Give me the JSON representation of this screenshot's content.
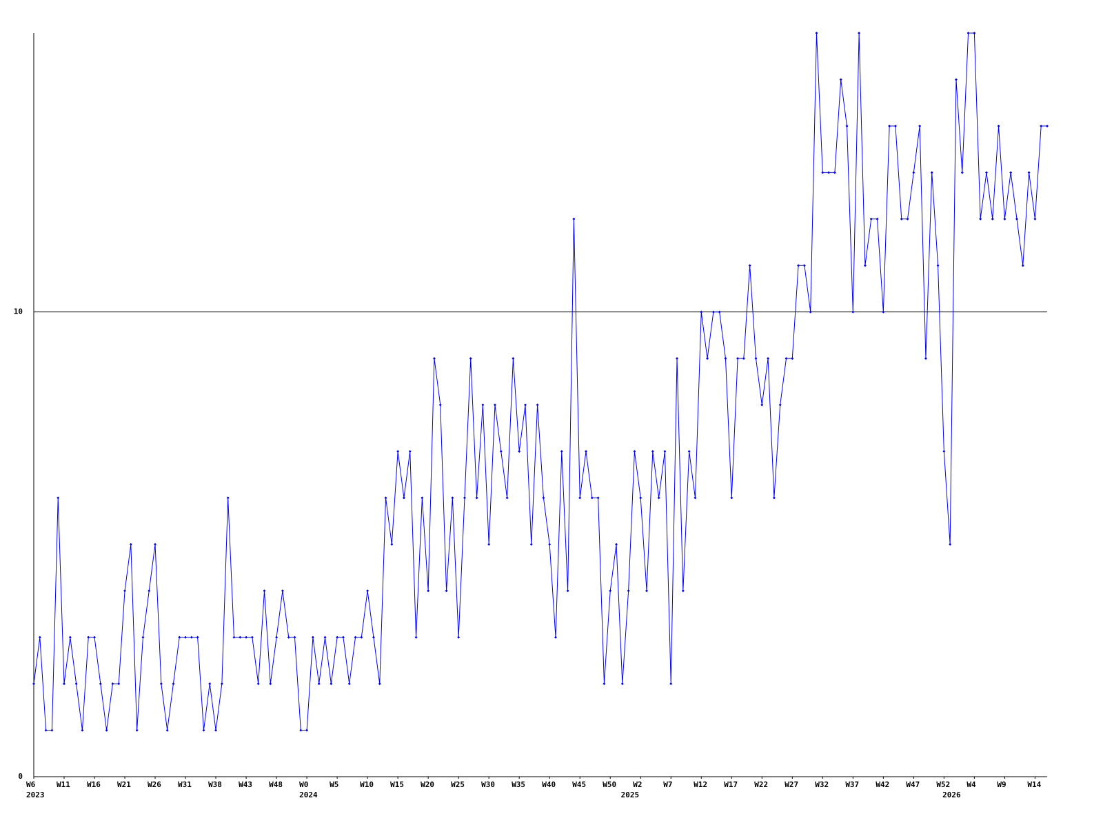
{
  "chart_data": {
    "type": "line",
    "x": [
      0,
      1,
      2,
      3,
      4,
      5,
      6,
      7,
      8,
      9,
      10,
      11,
      12,
      13,
      14,
      15,
      16,
      17,
      18,
      19,
      20,
      21,
      22,
      23,
      24,
      25,
      26,
      27,
      28,
      29,
      30,
      31,
      32,
      33,
      34,
      35,
      36,
      37,
      38,
      39,
      40,
      41,
      42,
      43,
      44,
      45,
      46,
      47,
      48,
      49,
      50,
      51,
      52,
      53,
      54,
      55,
      56,
      57,
      58,
      59,
      60,
      61,
      62,
      63,
      64,
      65,
      66,
      67,
      68,
      69,
      70,
      71,
      72,
      73,
      74,
      75,
      76,
      77,
      78,
      79,
      80,
      81,
      82,
      83,
      84,
      85,
      86,
      87,
      88,
      89,
      90,
      91,
      92,
      93,
      94,
      95,
      96,
      97,
      98,
      99,
      100,
      101,
      102,
      103,
      104,
      105,
      106,
      107,
      108,
      109,
      110,
      111,
      112,
      113,
      114,
      115,
      116,
      117,
      118,
      119,
      120,
      121,
      122,
      123,
      124,
      125,
      126,
      127,
      128,
      129,
      130,
      131,
      132,
      133,
      134,
      135,
      136,
      137,
      138,
      139,
      140,
      141,
      142,
      143,
      144,
      145,
      146,
      147,
      148,
      149,
      150,
      151,
      152,
      153,
      154,
      155,
      156,
      157,
      158,
      159,
      160,
      161,
      162,
      163,
      164,
      165,
      166,
      167
    ],
    "series": [
      {
        "color": "#0000ff",
        "values": [
          2,
          3,
          1,
          1,
          6,
          2,
          3,
          2,
          1,
          3,
          3,
          2,
          1,
          2,
          2,
          4,
          5,
          1,
          3,
          4,
          5,
          2,
          1,
          2,
          3,
          3,
          3,
          3,
          1,
          2,
          1,
          2,
          6,
          3,
          3,
          3,
          3,
          2,
          4,
          2,
          3,
          4,
          3,
          3,
          1,
          1,
          3,
          2,
          3,
          2,
          3,
          3,
          2,
          3,
          3,
          4,
          3,
          2,
          6,
          5,
          7,
          6,
          7,
          3,
          6,
          4,
          9,
          8,
          4,
          6,
          3,
          6,
          9,
          6,
          8,
          5,
          8,
          7,
          6,
          9,
          7,
          8,
          5,
          8,
          6,
          5,
          3,
          7,
          4,
          12,
          6,
          7,
          6,
          6,
          2,
          4,
          5,
          2,
          4,
          7,
          6,
          4,
          7,
          6,
          7,
          2,
          9,
          4,
          7,
          6,
          10,
          9,
          10,
          10,
          9,
          6,
          9,
          9,
          11,
          9,
          8,
          9,
          6,
          8,
          9,
          9,
          11,
          11,
          10,
          16,
          13,
          13,
          13,
          15,
          14,
          10,
          16,
          11,
          12,
          12,
          10,
          14,
          14,
          12,
          12,
          13,
          14,
          9,
          13,
          11,
          7,
          5,
          15,
          13,
          16,
          16,
          12,
          13,
          12,
          14,
          12,
          13,
          12,
          11,
          13,
          12,
          14,
          14
        ]
      }
    ],
    "xlim": [
      0,
      167
    ],
    "xticks": [
      {
        "value": 0,
        "label": "W6"
      },
      {
        "value": 5,
        "label": "W11"
      },
      {
        "value": 10,
        "label": "W16"
      },
      {
        "value": 15,
        "label": "W21"
      },
      {
        "value": 20,
        "label": "W26"
      },
      {
        "value": 25,
        "label": "W31"
      },
      {
        "value": 30,
        "label": "W38"
      },
      {
        "value": 35,
        "label": "W43"
      },
      {
        "value": 40,
        "label": "W48"
      },
      {
        "value": 45,
        "label": "W0"
      },
      {
        "value": 50,
        "label": "W5"
      },
      {
        "value": 55,
        "label": "W10"
      },
      {
        "value": 60,
        "label": "W15"
      },
      {
        "value": 65,
        "label": "W20"
      },
      {
        "value": 70,
        "label": "W25"
      },
      {
        "value": 75,
        "label": "W30"
      },
      {
        "value": 80,
        "label": "W35"
      },
      {
        "value": 85,
        "label": "W40"
      },
      {
        "value": 90,
        "label": "W45"
      },
      {
        "value": 95,
        "label": "W50"
      },
      {
        "value": 100,
        "label": "W2"
      },
      {
        "value": 105,
        "label": "W7"
      },
      {
        "value": 110,
        "label": "W12"
      },
      {
        "value": 115,
        "label": "W17"
      },
      {
        "value": 120,
        "label": "W22"
      },
      {
        "value": 125,
        "label": "W27"
      },
      {
        "value": 130,
        "label": "W32"
      },
      {
        "value": 135,
        "label": "W37"
      },
      {
        "value": 140,
        "label": "W42"
      },
      {
        "value": 145,
        "label": "W47"
      },
      {
        "value": 150,
        "label": "W52"
      },
      {
        "value": 155,
        "label": "W4"
      },
      {
        "value": 160,
        "label": "W9"
      },
      {
        "value": 165,
        "label": "W14"
      }
    ],
    "year_labels": [
      {
        "value": 0,
        "label": "2023"
      },
      {
        "value": 45,
        "label": "2024"
      },
      {
        "value": 98,
        "label": "2025"
      },
      {
        "value": 151,
        "label": "2026"
      }
    ],
    "ylim": [
      0,
      16
    ],
    "yticks": [
      0,
      10
    ],
    "grid": true
  }
}
